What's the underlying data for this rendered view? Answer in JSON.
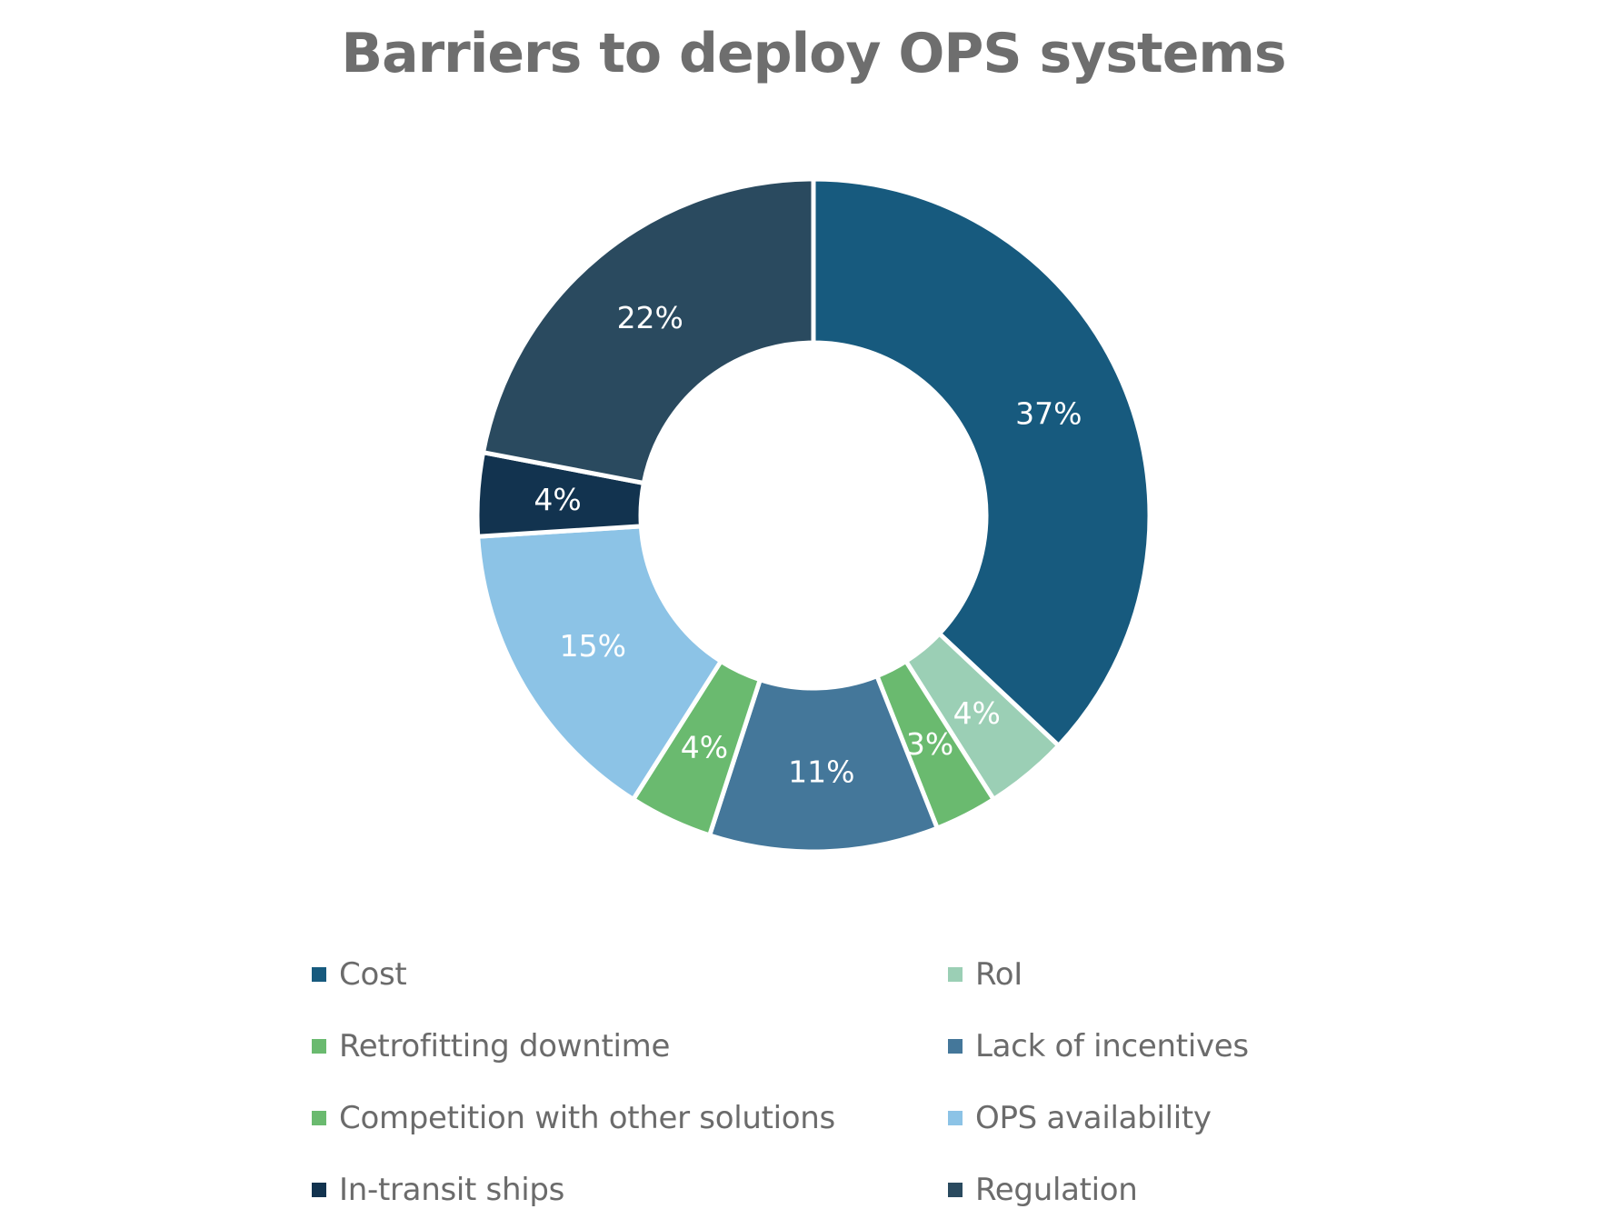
{
  "chart_data": {
    "type": "pie",
    "variant": "donut",
    "title": "Barriers to deploy OPS systems",
    "unit": "%",
    "start": "top",
    "direction": "clockwise",
    "legend_position": "bottom",
    "slices": [
      {
        "label": "Cost",
        "value": 37,
        "display": "37%",
        "color": "#175a7e"
      },
      {
        "label": "RoI",
        "value": 4,
        "display": "4%",
        "color": "#9bcfb5"
      },
      {
        "label": "Retrofitting downtime",
        "value": 3,
        "display": "3%",
        "color": "#6aba6f"
      },
      {
        "label": "Lack of incentives",
        "value": 11,
        "display": "11%",
        "color": "#44779a"
      },
      {
        "label": "Competition with other solutions",
        "value": 4,
        "display": "4%",
        "color": "#6aba6f"
      },
      {
        "label": "OPS availability",
        "value": 15,
        "display": "15%",
        "color": "#8cc3e6"
      },
      {
        "label": "In-transit ships",
        "value": 4,
        "display": "4%",
        "color": "#12334f"
      },
      {
        "label": "Regulation",
        "value": 22,
        "display": "22%",
        "color": "#2a4a5f"
      }
    ],
    "legend": [
      {
        "label": "Cost",
        "color": "#175a7e"
      },
      {
        "label": "RoI",
        "color": "#9bcfb5"
      },
      {
        "label": "Retrofitting downtime",
        "color": "#6aba6f"
      },
      {
        "label": "Lack of incentives",
        "color": "#44779a"
      },
      {
        "label": "Competition with other solutions",
        "color": "#6aba6f"
      },
      {
        "label": "OPS availability",
        "color": "#8cc3e6"
      },
      {
        "label": "In-transit ships",
        "color": "#12334f"
      },
      {
        "label": "Regulation",
        "color": "#2a4a5f"
      }
    ],
    "label_color": "#ffffff",
    "title_color": "#6e6e6e",
    "legend_text_color": "#6b6b6b"
  }
}
